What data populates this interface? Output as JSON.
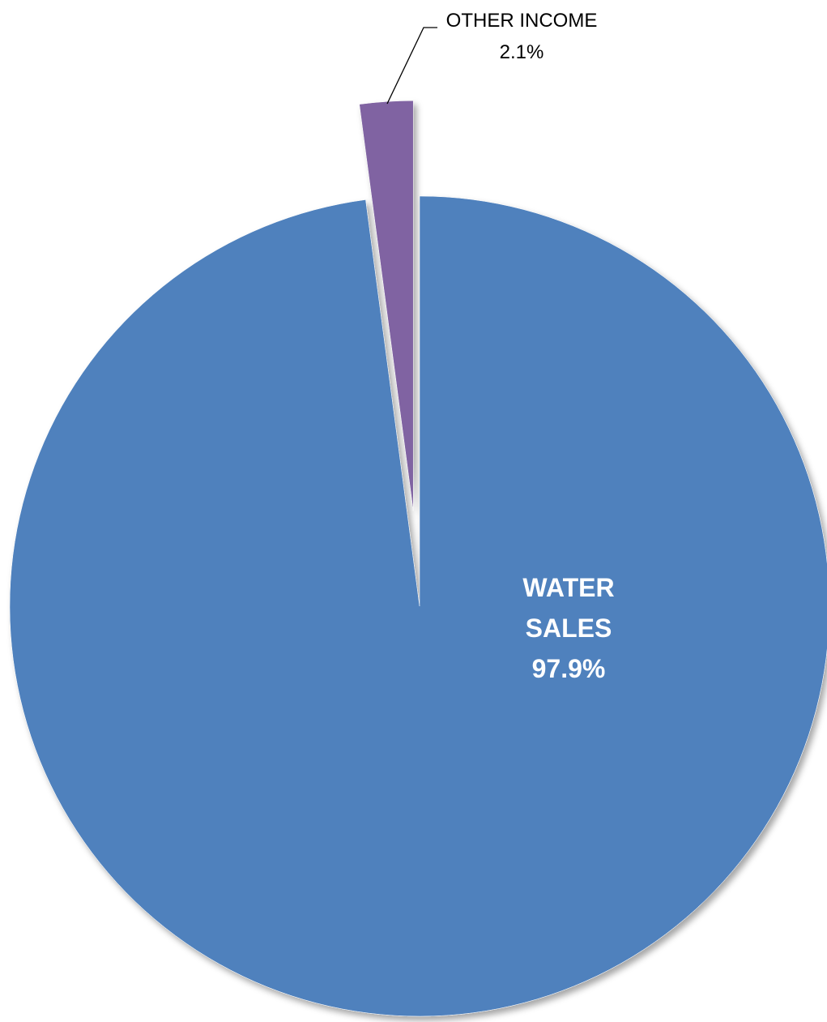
{
  "chart_data": {
    "type": "pie",
    "slices": [
      {
        "label": "WATER SALES",
        "line1": "WATER",
        "line2": "SALES",
        "value": 97.9,
        "value_label": "97.9%",
        "color": "#4F81BD",
        "exploded": false
      },
      {
        "label": "OTHER INCOME",
        "line1": "OTHER INCOME",
        "line2": "",
        "value": 2.1,
        "value_label": "2.1%",
        "color": "#8064A2",
        "exploded": true
      }
    ],
    "title": "",
    "legend": "none",
    "start_angle": "12 o'clock",
    "direction": "clockwise"
  }
}
